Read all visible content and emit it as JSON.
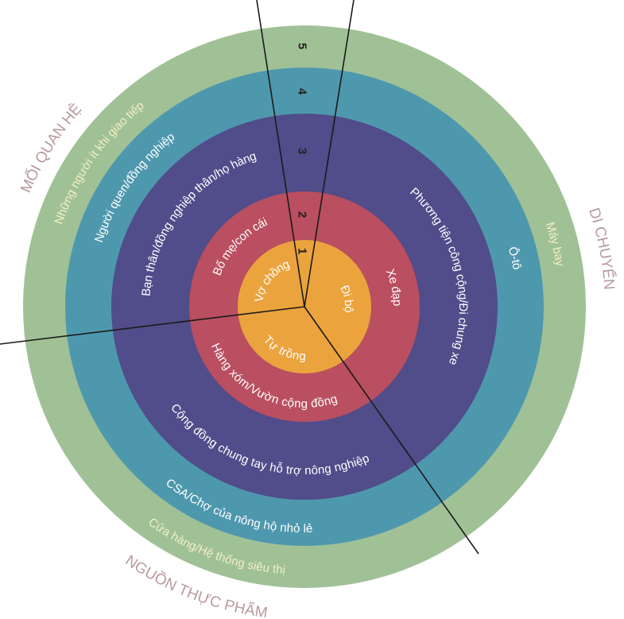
{
  "colors": {
    "ring1": "#eba33d",
    "ring2": "#b94f60",
    "ring3": "#514c8a",
    "ring4": "#4e98ae",
    "ring5": "#a0c196",
    "category": "#b89a9c",
    "divider": "#1a1a1a"
  },
  "levels": [
    "1",
    "2",
    "3",
    "4",
    "5"
  ],
  "categories": {
    "relationships": "MỐI QUAN HỆ",
    "transport": "DI CHUYỂN",
    "food": "NGUỒN THỰC PHẨM"
  },
  "relationships": [
    "Vợ chồng",
    "Bố mẹ/con cái",
    "Bạn thân/đồng nghiệp thân/họ hàng",
    "Người quen/đồng nghiệp",
    "Những người ít khi giao tiếp"
  ],
  "transport": [
    "Đi bộ",
    "Xe đạp",
    "Phương tiện công cộng/Đi chung xe",
    "Ô-tô",
    "Máy bay"
  ],
  "food": [
    "Tự trồng",
    "Hàng xóm/Vườn cộng đồng",
    "Cộng đồng chung tay hỗ trợ nông nghiệp",
    "CSA/Chợ của nông hộ nhỏ lẻ",
    "Cửa hàng/Hệ thống siêu thị"
  ]
}
